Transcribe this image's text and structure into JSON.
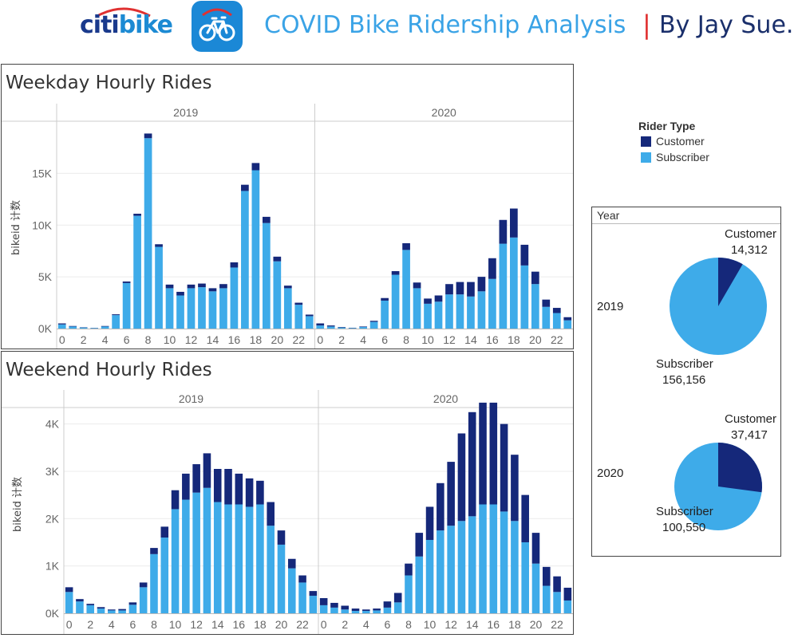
{
  "header": {
    "logo_citi": "citi",
    "logo_bike": "bike",
    "title": "COVID Bike Ridership Analysis",
    "separator": "|",
    "author": "By Jay Sue."
  },
  "colors": {
    "customer": "#15287a",
    "subscriber": "#3eabe9",
    "grid": "#ececec",
    "axis_text": "#666666",
    "divider": "#cccccc"
  },
  "legend": {
    "title": "Rider Type",
    "items": [
      {
        "label": "Customer",
        "color": "#15287a"
      },
      {
        "label": "Subscriber",
        "color": "#3eabe9"
      }
    ]
  },
  "pie_panel": {
    "header": "Year",
    "pies": [
      {
        "year": "2019",
        "customer_label": "Customer",
        "customer_value": "14,312",
        "subscriber_label": "Subscriber",
        "subscriber_value": "156,156"
      },
      {
        "year": "2020",
        "customer_label": "Customer",
        "customer_value": "37,417",
        "subscriber_label": "Subscriber",
        "subscriber_value": "100,550"
      }
    ]
  },
  "chart_data": [
    {
      "type": "bar",
      "stacked": true,
      "title": "Weekday Hourly Rides",
      "ylabel": "bikeid 计数",
      "panels": [
        "2019",
        "2020"
      ],
      "ylim": [
        0,
        19500
      ],
      "yticks": [
        0,
        5000,
        10000,
        15000
      ],
      "ytick_labels": [
        "0K",
        "5K",
        "10K",
        "15K"
      ],
      "xticks": [
        0,
        2,
        4,
        6,
        8,
        10,
        12,
        14,
        16,
        18,
        20,
        22
      ],
      "categories": [
        0,
        1,
        2,
        3,
        4,
        5,
        6,
        7,
        8,
        9,
        10,
        11,
        12,
        13,
        14,
        15,
        16,
        17,
        18,
        19,
        20,
        21,
        22,
        23
      ],
      "series": {
        "2019": [
          {
            "name": "Subscriber",
            "values": [
              400,
              200,
              100,
              50,
              200,
              1300,
              4400,
              10900,
              18400,
              7900,
              3900,
              3200,
              3900,
              4000,
              3600,
              3900,
              5900,
              13300,
              15300,
              10200,
              6500,
              3900,
              2300,
              1200
            ]
          },
          {
            "name": "Customer",
            "values": [
              100,
              50,
              30,
              20,
              50,
              80,
              150,
              200,
              450,
              250,
              350,
              350,
              350,
              350,
              300,
              400,
              500,
              600,
              700,
              600,
              450,
              250,
              200,
              150
            ]
          }
        ],
        "2020": [
          {
            "name": "Subscriber",
            "values": [
              300,
              200,
              100,
              50,
              150,
              650,
              2700,
              5200,
              7600,
              3900,
              2400,
              2600,
              3300,
              3300,
              3100,
              3600,
              4800,
              8200,
              8800,
              6100,
              4300,
              2100,
              1500,
              800
            ]
          },
          {
            "name": "Customer",
            "values": [
              200,
              100,
              50,
              30,
              50,
              100,
              250,
              350,
              650,
              550,
              500,
              600,
              1000,
              1200,
              1400,
              1400,
              2000,
              2300,
              2800,
              2000,
              1200,
              700,
              500,
              300
            ]
          }
        ]
      }
    },
    {
      "type": "bar",
      "stacked": true,
      "title": "Weekend Hourly Rides",
      "ylabel": "bikeid 计数",
      "panels": [
        "2019",
        "2020"
      ],
      "ylim": [
        0,
        4600
      ],
      "yticks": [
        0,
        1000,
        2000,
        3000,
        4000
      ],
      "ytick_labels": [
        "0K",
        "1K",
        "2K",
        "3K",
        "4K"
      ],
      "xticks": [
        0,
        2,
        4,
        6,
        8,
        10,
        12,
        14,
        16,
        18,
        20,
        22
      ],
      "categories": [
        0,
        1,
        2,
        3,
        4,
        5,
        6,
        7,
        8,
        9,
        10,
        11,
        12,
        13,
        14,
        15,
        16,
        17,
        18,
        19,
        20,
        21,
        22,
        23
      ],
      "series": {
        "2019": [
          {
            "name": "Subscriber",
            "values": [
              450,
              250,
              170,
              100,
              60,
              60,
              180,
              550,
              1250,
              1600,
              2200,
              2400,
              2550,
              2650,
              2350,
              2300,
              2300,
              2250,
              2300,
              1850,
              1450,
              950,
              650,
              370
            ]
          },
          {
            "name": "Customer",
            "values": [
              100,
              50,
              30,
              30,
              20,
              30,
              50,
              100,
              130,
              230,
              400,
              550,
              600,
              730,
              700,
              750,
              650,
              600,
              500,
              500,
              300,
              200,
              150,
              100
            ]
          }
        ],
        "2020": [
          {
            "name": "Subscriber",
            "values": [
              170,
              120,
              80,
              50,
              50,
              60,
              120,
              230,
              800,
              1200,
              1550,
              1750,
              1850,
              1950,
              2050,
              2300,
              2300,
              2150,
              1950,
              1500,
              1050,
              580,
              450,
              270
            ]
          },
          {
            "name": "Customer",
            "values": [
              150,
              100,
              80,
              50,
              30,
              40,
              130,
              200,
              250,
              500,
              700,
              1000,
              1350,
              1850,
              2200,
              2150,
              2150,
              1850,
              1400,
              1000,
              650,
              400,
              330,
              270
            ]
          }
        ]
      }
    }
  ]
}
